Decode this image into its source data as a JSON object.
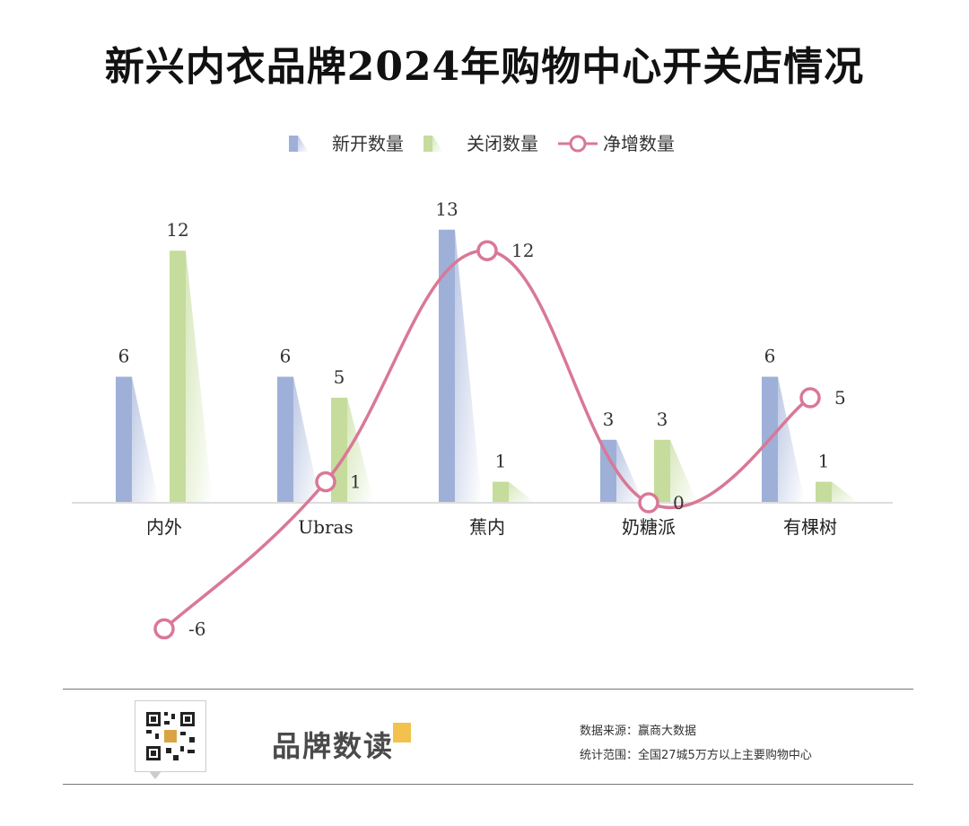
{
  "title": "新兴内衣品牌2024年购物中心开关店情况",
  "chart_data": {
    "type": "bar",
    "title": "新兴内衣品牌2024年购物中心开关店情况",
    "categories": [
      "内外",
      "Ubras",
      "蕉内",
      "奶糖派",
      "有棵树"
    ],
    "series": [
      {
        "name": "新开数量",
        "type": "bar",
        "color": "#9fb0d8",
        "values": [
          6,
          6,
          13,
          3,
          6
        ]
      },
      {
        "name": "关闭数量",
        "type": "bar",
        "color": "#c5dc9c",
        "values": [
          12,
          5,
          1,
          3,
          1
        ]
      },
      {
        "name": "净增数量",
        "type": "line",
        "color": "#d97896",
        "values": [
          -6,
          1,
          12,
          0,
          5
        ]
      }
    ],
    "legend_position": "top-center",
    "ylim": [
      -6,
      13
    ],
    "xlabel": "",
    "ylabel": "",
    "grid": false
  },
  "footer": {
    "brand": "品牌数读",
    "source": "数据来源：赢商大数据",
    "scope": "统计范围：全国27城5万方以上主要购物中心"
  }
}
